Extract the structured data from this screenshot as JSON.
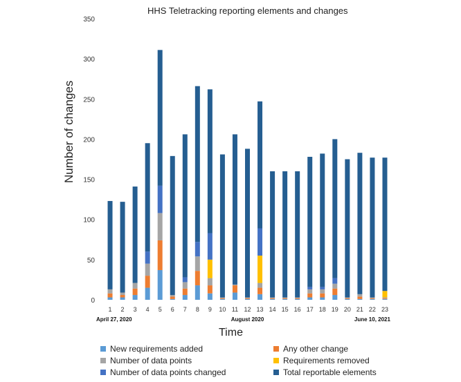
{
  "chart_data": {
    "type": "bar",
    "stacked": true,
    "title": "HHS Teletracking reporting elements and changes",
    "xlabel": "Time",
    "ylabel": "Number of changes",
    "ylim": [
      0,
      350
    ],
    "yticks": [
      0,
      50,
      100,
      150,
      200,
      250,
      300,
      350
    ],
    "categories": [
      "1",
      "2",
      "3",
      "4",
      "5",
      "6",
      "7",
      "8",
      "9",
      "10",
      "11",
      "12",
      "13",
      "14",
      "15",
      "16",
      "17",
      "18",
      "19",
      "20",
      "21",
      "22",
      "23"
    ],
    "date_annotations": [
      {
        "category": "1",
        "text": "April 27, 2020"
      },
      {
        "category": "12",
        "text": "August 2020"
      },
      {
        "category": "22",
        "text": "June 10, 2021"
      }
    ],
    "series": [
      {
        "name": "New requirements added",
        "color": "#5b9bd5",
        "values": [
          3,
          3,
          6,
          15,
          37,
          1,
          6,
          18,
          8,
          1,
          9,
          1,
          7,
          1,
          1,
          1,
          3,
          3,
          6,
          1,
          1,
          1,
          1
        ]
      },
      {
        "name": "Any other change",
        "color": "#ed7d31",
        "values": [
          5,
          3,
          8,
          15,
          37,
          3,
          8,
          18,
          10,
          1,
          9,
          1,
          8,
          1,
          1,
          1,
          5,
          5,
          8,
          1,
          3,
          1,
          1
        ]
      },
      {
        "name": "Number of data points",
        "color": "#a5a5a5",
        "values": [
          5,
          3,
          7,
          15,
          34,
          2,
          8,
          18,
          9,
          1,
          1,
          1,
          6,
          1,
          1,
          1,
          5,
          5,
          6,
          1,
          3,
          1,
          1
        ]
      },
      {
        "name": "Requirements removed",
        "color": "#ffc000",
        "values": [
          0,
          0,
          0,
          0,
          0,
          0,
          0,
          0,
          23,
          0,
          0,
          0,
          34,
          0,
          0,
          0,
          0,
          0,
          0,
          0,
          0,
          0,
          8
        ]
      },
      {
        "name": "Number of data points changed",
        "color": "#4472c4",
        "values": [
          0,
          0,
          0,
          15,
          34,
          0,
          6,
          18,
          33,
          0,
          0,
          0,
          34,
          0,
          0,
          0,
          3,
          3,
          7,
          0,
          0,
          0,
          0
        ]
      },
      {
        "name": "Total reportable elements",
        "color": "#255e91",
        "values": [
          110,
          113,
          120,
          135,
          169,
          173,
          178,
          194,
          179,
          178,
          187,
          185,
          158,
          157,
          157,
          157,
          162,
          166,
          173,
          172,
          176,
          174,
          166
        ]
      }
    ],
    "legend": {
      "placement": "bottom",
      "left": [
        "New requirements added",
        "Number of data points",
        "Number of data points changed"
      ],
      "right": [
        "Any other change",
        "Requirements removed",
        "Total reportable elements"
      ]
    }
  }
}
